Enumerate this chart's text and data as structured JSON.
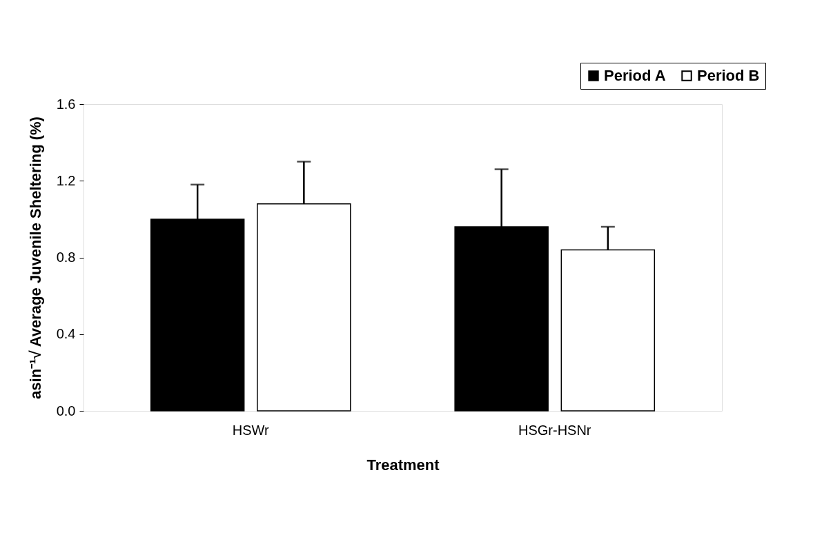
{
  "chart_data": {
    "type": "bar",
    "xlabel": "Treatment",
    "ylabel": "asin⁻¹√ Average Juvenile Sheltering (%)",
    "categories": [
      "HSWr",
      "HSGr-HSNr"
    ],
    "series": [
      {
        "name": "Period A",
        "color": "#000000",
        "values": [
          1.0,
          0.96
        ],
        "errors": [
          [
            1.0,
            1.18
          ],
          [
            0.96,
            1.26
          ]
        ]
      },
      {
        "name": "Period B",
        "color": "#ffffff",
        "values": [
          1.08,
          0.84
        ],
        "errors": [
          [
            1.08,
            1.3
          ],
          [
            0.84,
            0.96
          ]
        ]
      }
    ],
    "ylim": [
      0,
      1.6
    ],
    "yticks": [
      {
        "value": 0,
        "label": "0.0"
      },
      {
        "value": 0.4,
        "label": "0.4"
      },
      {
        "value": 0.8,
        "label": "0.8"
      },
      {
        "value": 1.2,
        "label": "1.2"
      },
      {
        "value": 1.6,
        "label": "1.6"
      }
    ],
    "grid": false,
    "legend": "top right"
  }
}
